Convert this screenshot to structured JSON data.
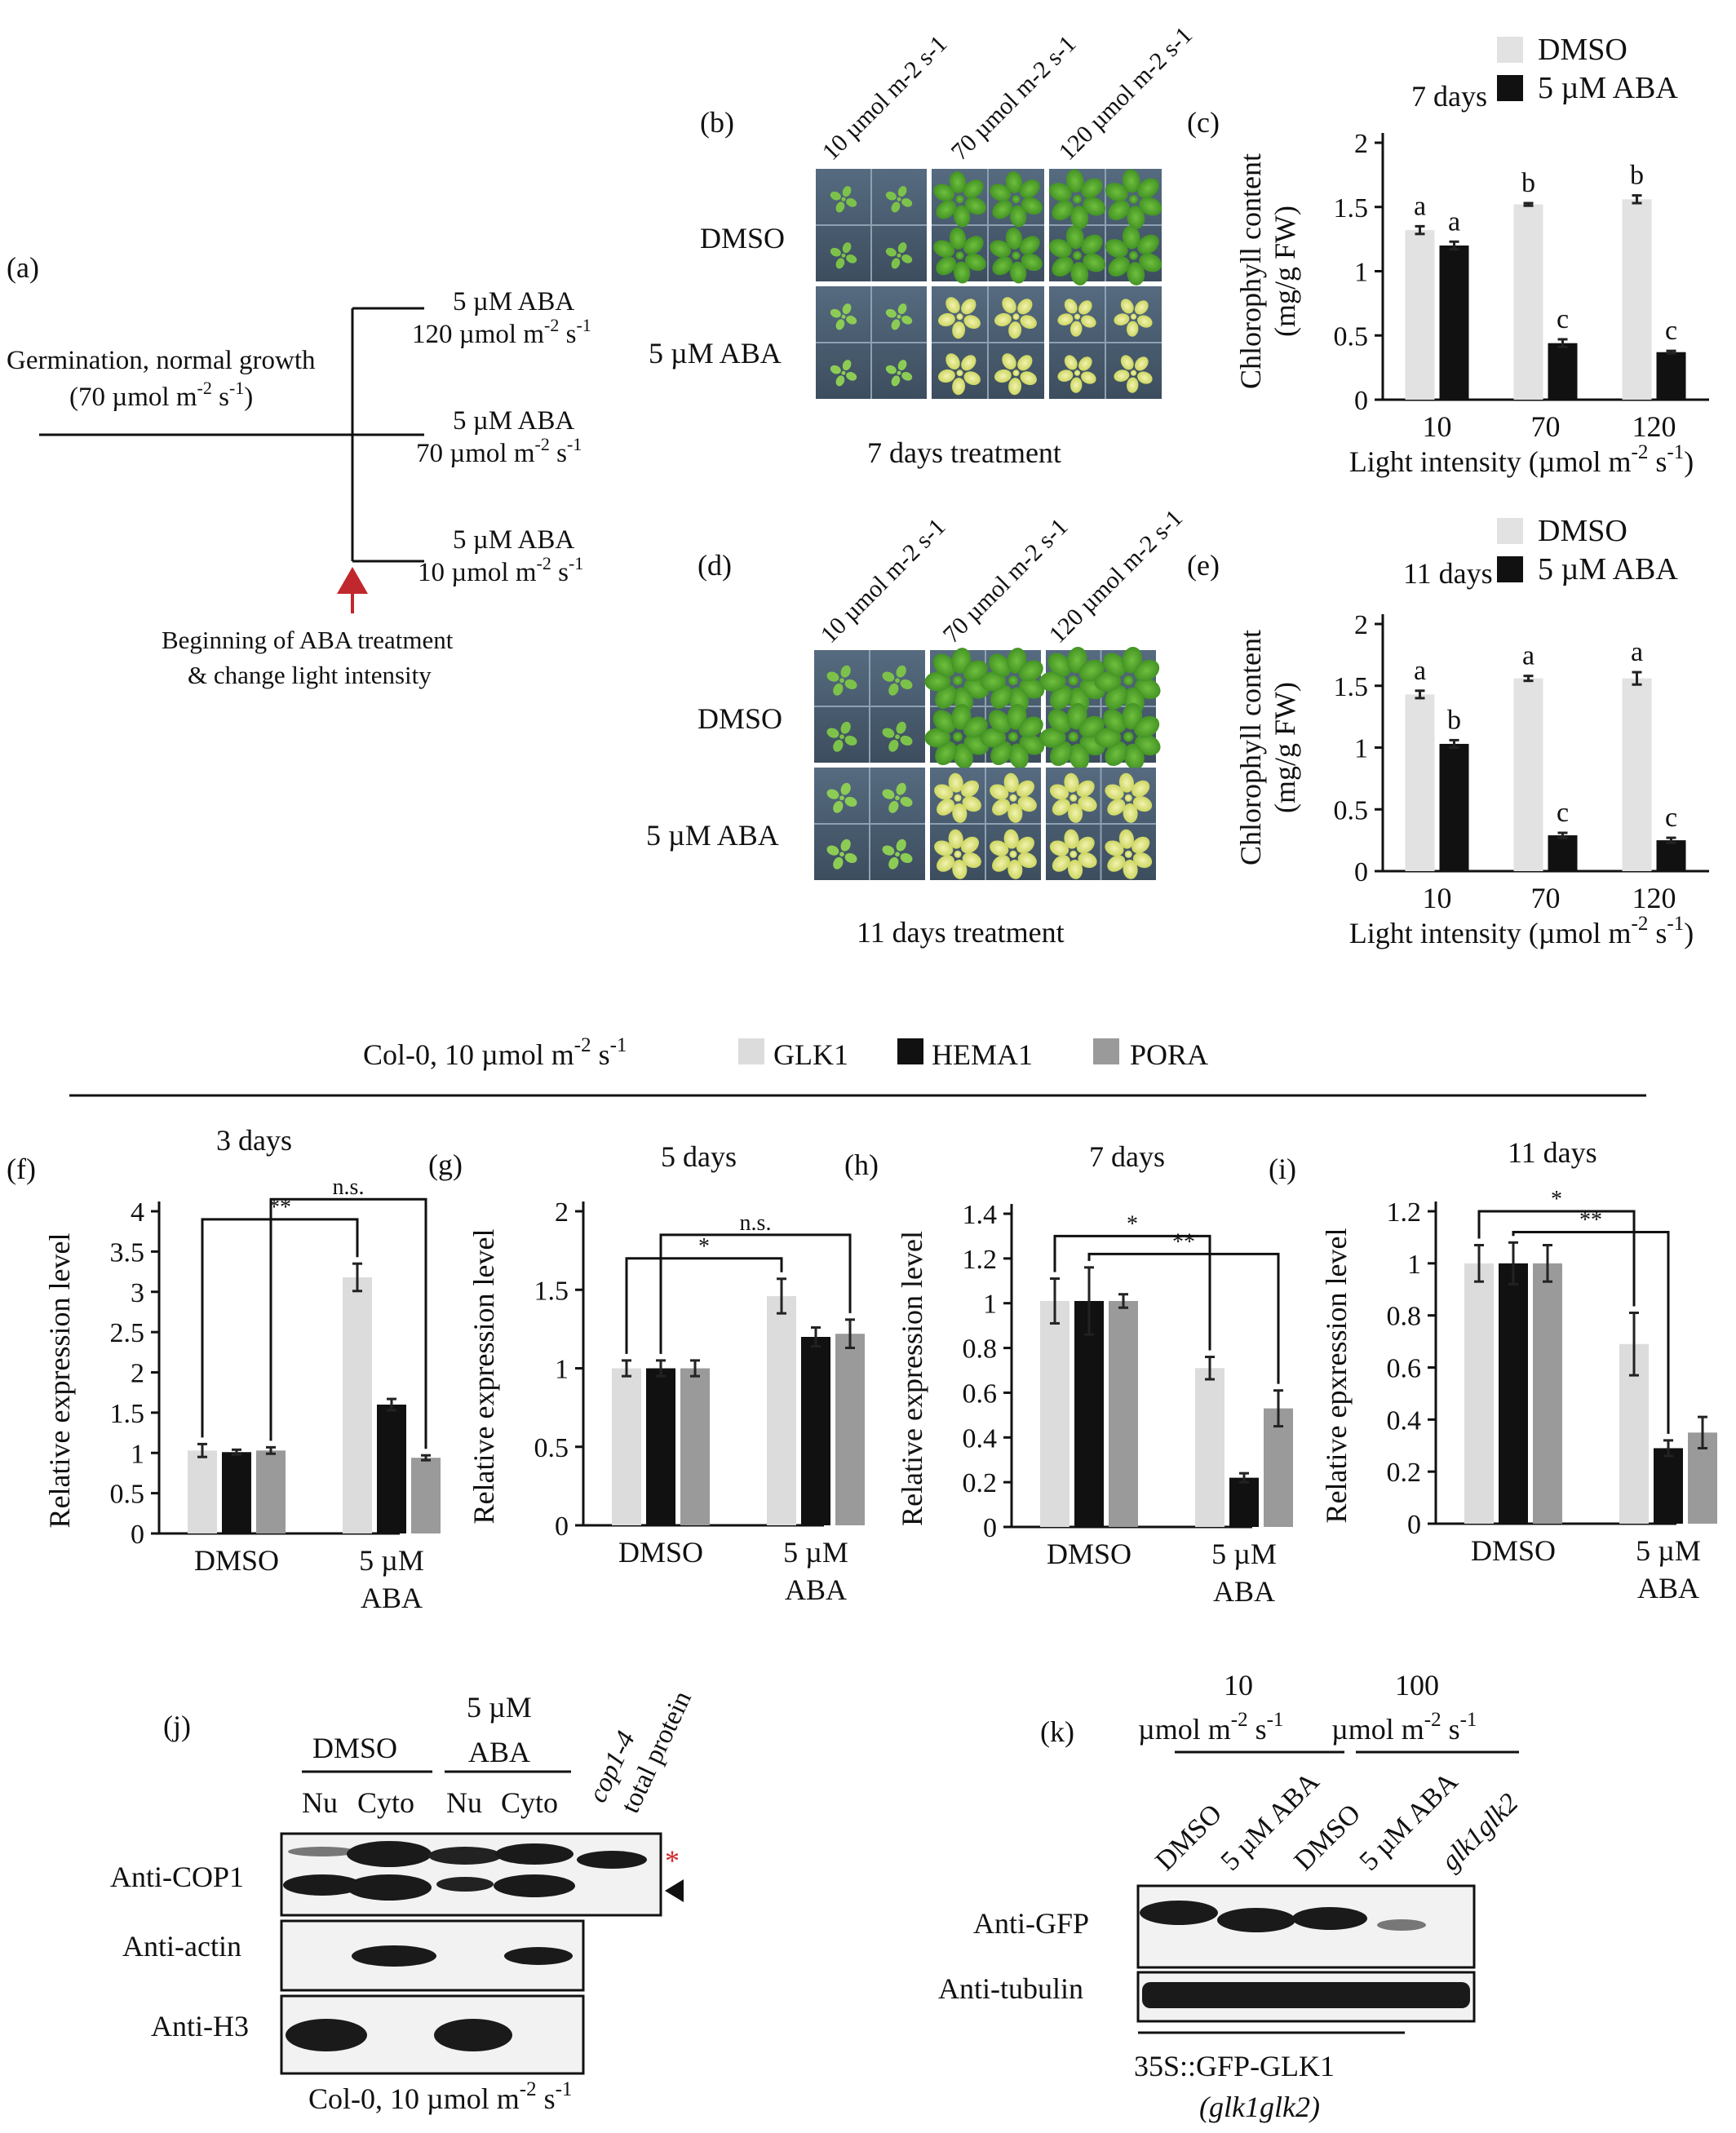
{
  "panel_a": {
    "label": "(a)",
    "start_text_1": "Germination, normal growth",
    "start_text_2": "(70 µmol m",
    "start_exp": "-2",
    "start_text_3": " s",
    "start_exp2": "-1",
    "start_text_4": ")",
    "branches": [
      {
        "l1": "5 µM ABA",
        "l2": "120 µmol m",
        "e1": "-2",
        "s": " s",
        "e2": "-1"
      },
      {
        "l1": "5 µM ABA",
        "l2": "70 µmol m",
        "e1": "-2",
        "s": " s",
        "e2": "-1"
      },
      {
        "l1": "5 µM ABA",
        "l2": "10 µmol m",
        "e1": "-2",
        "s": " s",
        "e2": "-1"
      }
    ],
    "note_1": "Beginning of ABA treatment",
    "note_2": "& change light intensity",
    "arrow_color": "#c0282d"
  },
  "panel_b": {
    "label": "(b)",
    "columns": [
      "10 µmol m-2 s-1",
      "70 µmol m-2 s-1",
      "120 µmol m-2 s-1"
    ],
    "rows": [
      "DMSO",
      "5 µM ABA"
    ],
    "caption": "7 days treatment"
  },
  "panel_d": {
    "label": "(d)",
    "columns": [
      "10 µmol m-2 s-1",
      "70 µmol m-2 s-1",
      "120 µmol m-2 s-1"
    ],
    "rows": [
      "DMSO",
      "5 µM ABA"
    ],
    "caption": "11 days treatment"
  },
  "legend_top": {
    "prefix": "Col-0, 10 µmol m",
    "exp1": "-2",
    "mid": " s",
    "exp2": "-1",
    "items": [
      "GLK1",
      "HEMA1",
      "PORA"
    ]
  },
  "panel_j": {
    "label": "(j)",
    "group1": "DMSO",
    "group2_l1": "5 µM",
    "group2_l2": "ABA",
    "extra_l1": "cop1-4",
    "extra_l2": "total protein",
    "lanes": [
      "Nu",
      "Cyto",
      "Nu",
      "Cyto"
    ],
    "blots": [
      "Anti-COP1",
      "Anti-actin",
      "Anti-H3"
    ],
    "star": "*",
    "star_color": "#d2232a",
    "caption_prefix": "Col-0, 10 µmol m",
    "caption_exp1": "-2",
    "caption_mid": " s",
    "caption_exp2": "-1"
  },
  "panel_k": {
    "label": "(k)",
    "cond1_l1": "10",
    "cond1_l2": "µmol m",
    "cond2_l1": "100",
    "cond2_l2": "µmol m",
    "exp1": "-2",
    "mid": " s",
    "exp2": "-1",
    "lanes": [
      "DMSO",
      "5 µM ABA",
      "DMSO",
      "5 µM ABA",
      "glk1glk2"
    ],
    "blots": [
      "Anti-GFP",
      "Anti-tubulin"
    ],
    "caption_1": "35S::GFP-GLK1",
    "caption_2": "(glk1glk2)"
  },
  "chart_data": [
    {
      "id": "c",
      "label": "(c)",
      "type": "bar",
      "title": "7 days",
      "categories": [
        "10",
        "70",
        "120"
      ],
      "series": [
        {
          "name": "DMSO",
          "values": [
            1.32,
            1.52,
            1.56
          ],
          "errors": [
            0.03,
            0.01,
            0.03
          ],
          "letters": [
            "a",
            "b",
            "b"
          ]
        },
        {
          "name": "5 µM ABA",
          "values": [
            1.2,
            0.44,
            0.37
          ],
          "errors": [
            0.03,
            0.03,
            0.01
          ],
          "letters": [
            "a",
            "c",
            "c"
          ]
        }
      ],
      "ylabel_1": "Chlorophyll content",
      "ylabel_2": "(mg/g FW)",
      "xlabel": "Light intensity (µmol m",
      "xlabel_exp1": "-2",
      "xlabel_mid": " s",
      "xlabel_exp2": "-1",
      "xlabel_end": ")",
      "ylim": [
        0,
        2
      ],
      "yticks": [
        "0",
        "0.5",
        "1",
        "1.5",
        "2"
      ],
      "ytick_values": [
        0,
        0.5,
        1,
        1.5,
        2
      ],
      "colors": [
        "#e2e2e2",
        "#111111"
      ]
    },
    {
      "id": "e",
      "label": "(e)",
      "type": "bar",
      "title": "11 days",
      "categories": [
        "10",
        "70",
        "120"
      ],
      "series": [
        {
          "name": "DMSO",
          "values": [
            1.43,
            1.56,
            1.56
          ],
          "errors": [
            0.03,
            0.02,
            0.05
          ],
          "letters": [
            "a",
            "a",
            "a"
          ]
        },
        {
          "name": "5 µM ABA",
          "values": [
            1.03,
            0.29,
            0.25
          ],
          "errors": [
            0.03,
            0.02,
            0.02
          ],
          "letters": [
            "b",
            "c",
            "c"
          ]
        }
      ],
      "ylabel_1": "Chlorophyll content",
      "ylabel_2": "(mg/g FW)",
      "xlabel": "Light intensity (µmol m",
      "xlabel_exp1": "-2",
      "xlabel_mid": " s",
      "xlabel_exp2": "-1",
      "xlabel_end": ")",
      "ylim": [
        0,
        2
      ],
      "yticks": [
        "0",
        "0.5",
        "1",
        "1.5",
        "2"
      ],
      "ytick_values": [
        0,
        0.5,
        1,
        1.5,
        2
      ],
      "colors": [
        "#e2e2e2",
        "#111111"
      ]
    },
    {
      "id": "f",
      "label": "(f)",
      "type": "bar",
      "title": "3 days",
      "categories": [
        "DMSO",
        "5 µM|ABA"
      ],
      "series": [
        {
          "name": "GLK1",
          "values": [
            1.03,
            3.18
          ],
          "errors": [
            0.08,
            0.17
          ]
        },
        {
          "name": "HEMA1",
          "values": [
            1.01,
            1.6
          ],
          "errors": [
            0.03,
            0.07
          ]
        },
        {
          "name": "PORA",
          "values": [
            1.03,
            0.94
          ],
          "errors": [
            0.04,
            0.03
          ]
        }
      ],
      "ylabel": "Relative expression level",
      "ylim": [
        0,
        4
      ],
      "yticks": [
        "0",
        "0.5",
        "1",
        "1.5",
        "2",
        "2.5",
        "3",
        "3.5",
        "4"
      ],
      "ytick_values": [
        0,
        0.5,
        1,
        1.5,
        2,
        2.5,
        3,
        3.5,
        4
      ],
      "brackets": [
        {
          "text": "n.s.",
          "from_series": 2,
          "to_series": 2,
          "level": 4.15
        },
        {
          "text": "**",
          "from_series": 0,
          "to_series": 0,
          "level": 3.9
        }
      ],
      "colors": [
        "#dcdcdc",
        "#111111",
        "#9a9a9a"
      ]
    },
    {
      "id": "g",
      "label": "(g)",
      "type": "bar",
      "title": "5 days",
      "categories": [
        "DMSO",
        "5 µM|ABA"
      ],
      "series": [
        {
          "name": "GLK1",
          "values": [
            1.0,
            1.46
          ],
          "errors": [
            0.05,
            0.11
          ]
        },
        {
          "name": "HEMA1",
          "values": [
            1.0,
            1.2
          ],
          "errors": [
            0.05,
            0.06
          ]
        },
        {
          "name": "PORA",
          "values": [
            1.0,
            1.22
          ],
          "errors": [
            0.05,
            0.09
          ]
        }
      ],
      "ylabel": "Relative expression level",
      "ylim": [
        0,
        2
      ],
      "yticks": [
        "0",
        "0.5",
        "1",
        "1.5",
        "2"
      ],
      "ytick_values": [
        0,
        0.5,
        1,
        1.5,
        2
      ],
      "brackets": [
        {
          "text": "n.s.",
          "from_series": 1,
          "to_series": 2,
          "level": 1.85
        },
        {
          "text": "*",
          "from_series": 0,
          "to_series": 0,
          "level": 1.7
        }
      ],
      "colors": [
        "#dcdcdc",
        "#111111",
        "#9a9a9a"
      ]
    },
    {
      "id": "h",
      "label": "(h)",
      "type": "bar",
      "title": "7 days",
      "categories": [
        "DMSO",
        "5 µM|ABA"
      ],
      "series": [
        {
          "name": "GLK1",
          "values": [
            1.01,
            0.71
          ],
          "errors": [
            0.1,
            0.05
          ]
        },
        {
          "name": "HEMA1",
          "values": [
            1.01,
            0.22
          ],
          "errors": [
            0.15,
            0.02
          ]
        },
        {
          "name": "PORA",
          "values": [
            1.01,
            0.53
          ],
          "errors": [
            0.03,
            0.08
          ]
        }
      ],
      "ylabel": "Relative expression level",
      "ylim": [
        0,
        1.4
      ],
      "yticks": [
        "0",
        "0.2",
        "0.4",
        "0.6",
        "0.8",
        "1",
        "1.2",
        "1.4"
      ],
      "ytick_values": [
        0,
        0.2,
        0.4,
        0.6,
        0.8,
        1,
        1.2,
        1.4
      ],
      "brackets": [
        {
          "text": "*",
          "from_series": 0,
          "to_series": 0,
          "level": 1.3
        },
        {
          "text": "**",
          "from_series": 1,
          "to_series": 2,
          "level": 1.22
        }
      ],
      "colors": [
        "#dcdcdc",
        "#111111",
        "#9a9a9a"
      ]
    },
    {
      "id": "i",
      "label": "(i)",
      "type": "bar",
      "title": "11 days",
      "categories": [
        "DMSO",
        "5 µM|ABA"
      ],
      "series": [
        {
          "name": "GLK1",
          "values": [
            1.0,
            0.69
          ],
          "errors": [
            0.07,
            0.12
          ]
        },
        {
          "name": "HEMA1",
          "values": [
            1.0,
            0.29
          ],
          "errors": [
            0.08,
            0.03
          ]
        },
        {
          "name": "PORA",
          "values": [
            1.0,
            0.35
          ],
          "errors": [
            0.07,
            0.06
          ]
        }
      ],
      "ylabel": "Relative epxression level",
      "ylim": [
        0,
        1.2
      ],
      "yticks": [
        "0",
        "0.2",
        "0.4",
        "0.6",
        "0.8",
        "1",
        "1.2"
      ],
      "ytick_values": [
        0,
        0.2,
        0.4,
        0.6,
        0.8,
        1,
        1.2
      ],
      "brackets": [
        {
          "text": "*",
          "from_series": 0,
          "to_series": 0,
          "level": 1.2
        },
        {
          "text": "**",
          "from_series": 1,
          "to_series": 1,
          "level": 1.12
        }
      ],
      "colors": [
        "#dcdcdc",
        "#111111",
        "#9a9a9a"
      ]
    }
  ]
}
